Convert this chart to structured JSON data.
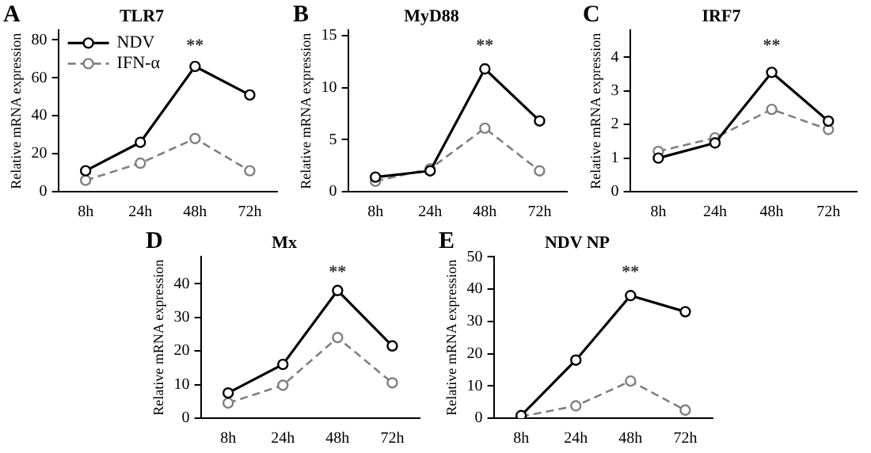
{
  "chart_data": [
    {
      "type": "line",
      "title": "TLR7",
      "ylabel": "Relative mRNA expression",
      "categories": [
        "8h",
        "24h",
        "48h",
        "72h"
      ],
      "ylim": [
        0,
        85
      ],
      "yticks": [
        0,
        20,
        40,
        60,
        80
      ],
      "grid": false,
      "legend": "top left",
      "marker": "circle",
      "series": [
        {
          "name": "NDV",
          "color": "#000000",
          "line_style": "solid",
          "values": [
            11,
            26,
            66,
            51
          ]
        },
        {
          "name": "IFN-α",
          "color": "#808080",
          "line_style": "dashed",
          "values": [
            6,
            15,
            28,
            11
          ]
        }
      ],
      "annotations": [
        "A",
        "**"
      ]
    },
    {
      "type": "line",
      "title": "MyD88",
      "ylabel": "Relative mRNA expression",
      "categories": [
        "8h",
        "24h",
        "48h",
        "72h"
      ],
      "ylim": [
        0,
        15.5
      ],
      "yticks": [
        0,
        5,
        10,
        15
      ],
      "grid": false,
      "legend": false,
      "marker": "circle",
      "series": [
        {
          "color": "#000000",
          "line_style": "solid",
          "values": [
            1.4,
            2.0,
            11.8,
            6.8
          ]
        },
        {
          "color": "#808080",
          "line_style": "dashed",
          "values": [
            1.0,
            2.2,
            6.1,
            2.0
          ]
        }
      ],
      "annotations": [
        "B",
        "**"
      ]
    },
    {
      "type": "line",
      "title": "IRF7",
      "ylabel": "Relative mRNA expression",
      "categories": [
        "8h",
        "24h",
        "48h",
        "72h"
      ],
      "ylim": [
        0,
        4.8
      ],
      "yticks": [
        0,
        1,
        2,
        3,
        4
      ],
      "grid": false,
      "legend": false,
      "marker": "circle",
      "series": [
        {
          "color": "#000000",
          "line_style": "solid",
          "values": [
            1.0,
            1.45,
            3.55,
            2.1
          ]
        },
        {
          "color": "#808080",
          "line_style": "dashed",
          "values": [
            1.2,
            1.6,
            2.45,
            1.85
          ]
        }
      ],
      "annotations": [
        "C",
        "**"
      ]
    },
    {
      "type": "line",
      "title": "Mx",
      "ylabel": "Relative mRNA expression",
      "categories": [
        "8h",
        "24h",
        "48h",
        "72h"
      ],
      "ylim": [
        0,
        48
      ],
      "yticks": [
        0,
        10,
        20,
        30,
        40
      ],
      "grid": false,
      "legend": false,
      "marker": "circle",
      "series": [
        {
          "color": "#000000",
          "line_style": "solid",
          "values": [
            7.5,
            16,
            38,
            21.5
          ]
        },
        {
          "color": "#808080",
          "line_style": "dashed",
          "values": [
            4.5,
            9.8,
            24,
            10.5
          ]
        }
      ],
      "annotations": [
        "D",
        "**"
      ]
    },
    {
      "type": "line",
      "title": "NDV NP",
      "ylabel": "Relative mRNA expression",
      "categories": [
        "8h",
        "24h",
        "48h",
        "72h"
      ],
      "ylim": [
        0,
        50
      ],
      "yticks": [
        0,
        10,
        20,
        30,
        40,
        50
      ],
      "grid": false,
      "legend": false,
      "marker": "circle",
      "series": [
        {
          "color": "#000000",
          "line_style": "solid",
          "values": [
            0.8,
            18,
            38,
            33
          ]
        },
        {
          "color": "#808080",
          "line_style": "dashed",
          "values": [
            0.5,
            3.8,
            11.5,
            2.5
          ]
        }
      ],
      "annotations": [
        "E",
        "**"
      ]
    }
  ]
}
